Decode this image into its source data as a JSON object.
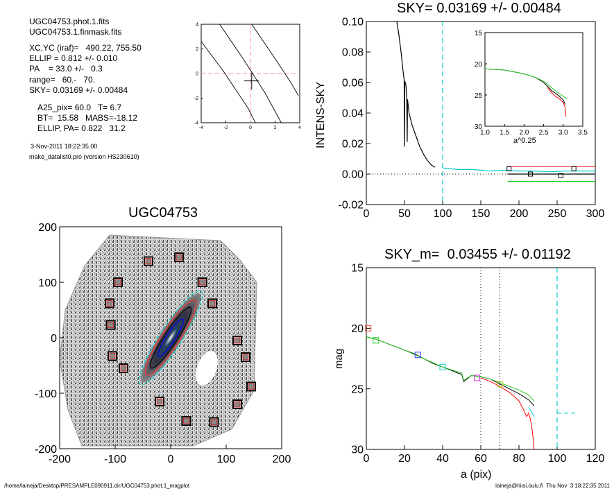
{
  "info": {
    "file1": "UGC04753.phot.1.fits",
    "file2": "UGC04753.1.finmask.fits",
    "xcyc": "XC,YC (iraf)=   490.22, 755.50",
    "ellip": "ELLIP = 0.812 +/- 0.010",
    "pa": "PA    = 33.0 +/-   0.3",
    "range": "range=   60.-   70.",
    "sky": "SKY= 0.03169 +/- 0.00484",
    "a25": "A25_pix= 60.0   T= 6.7",
    "bt": "BT=  15.58   MABS=-18.12",
    "ellip_pa": "ELLIP, PA= 0.822   31.2",
    "date": "3-Nov-2011 18:22:35.00",
    "program": "make_datalist0.pro (version HS230610)"
  },
  "footer": {
    "path": "/home/laineja/Desktop/PRESAMPLE090911.dir/UGC04753.phot.1_magplot",
    "user": "laineja@hiisi.oulu.fi  Thu Nov  3 18:22:35 2011"
  },
  "chart_data": [
    {
      "id": "sky-contour-mini",
      "type": "line",
      "title": "",
      "xlim": [
        -4,
        4
      ],
      "ylim": [
        -4,
        4
      ],
      "xticks": [
        "-4",
        "-2",
        "0",
        "2",
        "4"
      ],
      "yticks": [
        "-4",
        "-2",
        "0",
        "2",
        "4"
      ],
      "contours": [
        [
          [
            -4.0,
            2.6
          ],
          [
            -2.2,
            0.2
          ],
          [
            -0.2,
            -2.8
          ],
          [
            0.4,
            -4.0
          ]
        ],
        [
          [
            -2.5,
            4.0
          ],
          [
            -0.6,
            1.2
          ],
          [
            1.2,
            -1.6
          ],
          [
            2.5,
            -4.0
          ]
        ],
        [
          [
            0.1,
            4.0
          ],
          [
            1.6,
            1.8
          ],
          [
            3.2,
            -0.6
          ],
          [
            3.9,
            -1.8
          ]
        ]
      ],
      "guide_color": "#ff8888"
    },
    {
      "id": "intens-sky",
      "type": "line",
      "title": "SKY= 0.03169 +/- 0.00484",
      "xlabel": "",
      "ylabel": "INTENS-SKY",
      "xlim": [
        0,
        300
      ],
      "ylim": [
        -0.02,
        0.1
      ],
      "xticks": [
        "0",
        "50",
        "100",
        "150",
        "200",
        "250",
        "300"
      ],
      "yticks": [
        "-0.02",
        "0.00",
        "0.02",
        "0.04",
        "0.06",
        "0.08",
        "0.10"
      ],
      "vline_x": 100,
      "series": [
        {
          "color": "#000000",
          "x": [
            40,
            43,
            46,
            48,
            49.5,
            50,
            50.5,
            52,
            53,
            53.5,
            54,
            56,
            60,
            65,
            70,
            75,
            80,
            85,
            88,
            90
          ],
          "y": [
            0.1,
            0.09,
            0.078,
            0.068,
            0.062,
            0.018,
            0.061,
            0.058,
            0.05,
            0.021,
            0.049,
            0.04,
            0.032,
            0.025,
            0.018,
            0.013,
            0.009,
            0.006,
            0.005,
            0.0045
          ]
        },
        {
          "color": "#00cccc",
          "x": [
            100,
            110,
            120,
            140,
            160,
            180,
            200,
            220,
            240,
            260,
            300
          ],
          "y": [
            0.004,
            0.0035,
            0.003,
            0.003,
            0.002,
            0.0025,
            0.002,
            0.002,
            0.0015,
            0.002,
            0.002
          ]
        },
        {
          "color": "#ff4444",
          "x": [
            185,
            300
          ],
          "y": [
            0.0048,
            0.0048
          ]
        },
        {
          "color": "#000000",
          "x": [
            185,
            300
          ],
          "y": [
            0.0,
            0.0
          ]
        },
        {
          "color": "#22cc22",
          "x": [
            185,
            300
          ],
          "y": [
            -0.0048,
            -0.0048
          ]
        }
      ],
      "markers": [
        [
          187,
          0.0035
        ],
        [
          215,
          0.0
        ],
        [
          255,
          -0.001
        ],
        [
          272,
          0.0035
        ]
      ],
      "inset": {
        "xlim": [
          1.0,
          3.5
        ],
        "ylim": [
          15,
          30
        ],
        "xlabel": "a^0.25",
        "xticks": [
          "1.0",
          "1.5",
          "2.0",
          "2.5",
          "3.0",
          "3.5"
        ],
        "yticks": [
          "15",
          "20",
          "25",
          "30"
        ],
        "series": [
          {
            "color": "#000000",
            "x": [
              1.0,
              1.5,
              2.0,
              2.3,
              2.5,
              2.6,
              2.7,
              2.8,
              2.9,
              3.0,
              3.05
            ],
            "y": [
              20.8,
              21.0,
              21.6,
              22.2,
              23.0,
              23.6,
              24.3,
              24.7,
              25.2,
              25.8,
              26.5
            ]
          },
          {
            "color": "#ff0000",
            "x": [
              2.6,
              2.7,
              2.8,
              2.9,
              3.0,
              3.05,
              3.07
            ],
            "y": [
              23.8,
              24.6,
              25.2,
              25.6,
              26.2,
              27.0,
              28.5
            ]
          },
          {
            "color": "#22cc22",
            "x": [
              1.0,
              1.5,
              2.0,
              2.3,
              2.5,
              2.7,
              2.9,
              3.0,
              3.1
            ],
            "y": [
              20.8,
              21.0,
              21.6,
              22.2,
              22.8,
              23.8,
              24.8,
              25.2,
              25.6
            ]
          }
        ]
      }
    },
    {
      "id": "galaxy-image",
      "type": "scatter",
      "title": "UGC04753",
      "xlim": [
        -200,
        200
      ],
      "ylim": [
        -200,
        200
      ],
      "xticks": [
        "-200",
        "-100",
        "0",
        "100",
        "200"
      ],
      "yticks": [
        "-200",
        "-100",
        "0",
        "100",
        "200"
      ],
      "mask_boxes": [
        [
          -40,
          138
        ],
        [
          15,
          145
        ],
        [
          -95,
          100
        ],
        [
          57,
          100
        ],
        [
          -110,
          62
        ],
        [
          -108,
          23
        ],
        [
          -105,
          -33
        ],
        [
          -85,
          -55
        ],
        [
          -20,
          -115
        ],
        [
          28,
          -150
        ],
        [
          78,
          -152
        ],
        [
          120,
          -120
        ],
        [
          145,
          -88
        ],
        [
          135,
          -35
        ],
        [
          120,
          -5
        ],
        [
          75,
          62
        ]
      ],
      "ellipses": [
        {
          "a": 100,
          "b": 20,
          "angle": -57,
          "color": "#00cccc"
        },
        {
          "a": 80,
          "b": 16,
          "angle": -57,
          "color": "#ff3333"
        },
        {
          "a": 65,
          "b": 12,
          "angle": -57,
          "color": "#000000"
        },
        {
          "a": 40,
          "b": 8,
          "angle": -57,
          "color": "#0000ff"
        }
      ]
    },
    {
      "id": "mag-profile",
      "type": "line",
      "title": "SKY_m=  0.03455 +/- 0.01192",
      "xlabel": "a (pix)",
      "ylabel": "mag",
      "xlim": [
        0,
        120
      ],
      "ylim": [
        15,
        30
      ],
      "y_inverted": true,
      "xticks": [
        "0",
        "20",
        "40",
        "60",
        "80",
        "100",
        "120"
      ],
      "yticks": [
        "15",
        "20",
        "25",
        "30"
      ],
      "vlines_dotted": [
        60,
        70
      ],
      "vline_cyan": 100,
      "series": [
        {
          "color": "#000000",
          "x": [
            0,
            5,
            10,
            15,
            20,
            25,
            30,
            35,
            40,
            45,
            48,
            50,
            51,
            55,
            60,
            65,
            70,
            75,
            80,
            85,
            88
          ],
          "y": [
            20.7,
            20.9,
            21.2,
            21.5,
            21.8,
            22.1,
            22.5,
            22.9,
            23.2,
            23.5,
            23.7,
            23.8,
            24.4,
            23.9,
            24.0,
            24.2,
            24.6,
            25.0,
            25.4,
            25.9,
            26.4
          ]
        },
        {
          "color": "#ff0000",
          "x": [
            60,
            65,
            70,
            75,
            78,
            80,
            82,
            84,
            85,
            86,
            87,
            88
          ],
          "y": [
            24.1,
            24.4,
            24.8,
            25.3,
            25.7,
            26.0,
            26.6,
            27.3,
            27.0,
            27.5,
            28.5,
            30.0
          ]
        },
        {
          "color": "#22cc22",
          "x": [
            0,
            5,
            10,
            20,
            30,
            40,
            50,
            51,
            55,
            60,
            65,
            70,
            75,
            80,
            85,
            88
          ],
          "y": [
            20.7,
            20.9,
            21.2,
            21.8,
            22.5,
            23.2,
            23.7,
            24.3,
            23.9,
            24.0,
            24.2,
            24.5,
            24.8,
            25.1,
            25.5,
            26.0
          ]
        },
        {
          "color": "#00cccc",
          "x": [
            85,
            88
          ],
          "y": [
            26.5,
            27.3
          ]
        },
        {
          "color": "#00cccc",
          "x": [
            100,
            110
          ],
          "y": [
            27.0,
            27.0
          ],
          "dashed": true
        }
      ],
      "markers": [
        {
          "x": 1,
          "y": 20.0,
          "color": "#ff4444"
        },
        {
          "x": 5,
          "y": 21.0,
          "color": "#22cc22"
        },
        {
          "x": 27,
          "y": 22.2,
          "color": "#3333ff"
        },
        {
          "x": 40,
          "y": 23.2,
          "color": "#00cccc"
        },
        {
          "x": 58,
          "y": 24.1,
          "color": "#cc33cc"
        },
        {
          "x": 70,
          "y": 24.6,
          "color": "#cccc22"
        }
      ]
    }
  ]
}
